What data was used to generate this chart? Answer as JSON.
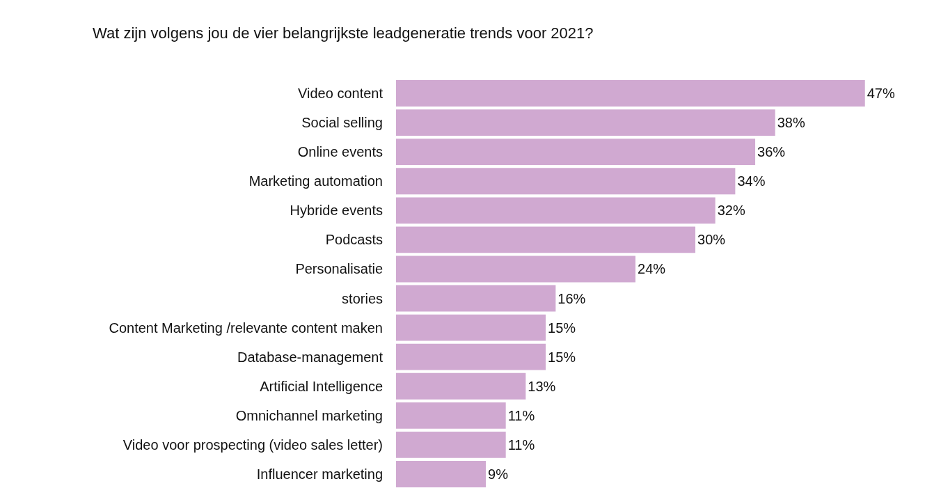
{
  "chart_data": {
    "type": "bar",
    "orientation": "horizontal",
    "title": "Wat zijn volgens jou de vier belangrijkste leadgeneratie trends voor 2021?",
    "categories": [
      "Video content",
      "Social selling",
      "Online events",
      "Marketing automation",
      "Hybride events",
      "Podcasts",
      "Personalisatie",
      "stories",
      "Content Marketing /relevante content maken",
      "Database-management",
      "Artificial Intelligence",
      "Omnichannel marketing",
      "Video voor prospecting (video sales letter)",
      "Influencer marketing"
    ],
    "values": [
      47,
      38,
      36,
      34,
      32,
      30,
      24,
      16,
      15,
      15,
      13,
      11,
      11,
      9
    ],
    "value_labels": [
      "47%",
      "38%",
      "36%",
      "34%",
      "32%",
      "30%",
      "24%",
      "16%",
      "15%",
      "15%",
      "13%",
      "11%",
      "11%",
      "9%"
    ],
    "color": "#d0a9d1"
  }
}
